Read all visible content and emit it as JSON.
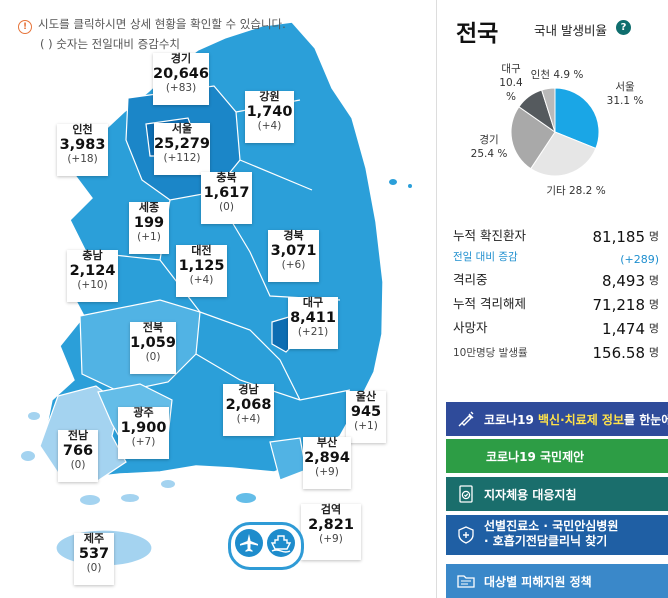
{
  "notice": {
    "line1": "시도를 클릭하시면 상세 현황을 확인할 수 있습니다.",
    "line2": "( ) 숫자는 전일대비 증감수치"
  },
  "regions": [
    {
      "key": "gyeonggi",
      "name": "경기",
      "count": "20,646",
      "diff": "(+83)"
    },
    {
      "key": "gangwon",
      "name": "강원",
      "count": "1,740",
      "diff": "(+4)"
    },
    {
      "key": "incheon",
      "name": "인천",
      "count": "3,983",
      "diff": "(+18)"
    },
    {
      "key": "seoul",
      "name": "서울",
      "count": "25,279",
      "diff": "(+112)"
    },
    {
      "key": "chungbuk",
      "name": "충북",
      "count": "1,617",
      "diff": "(0)"
    },
    {
      "key": "sejong",
      "name": "세종",
      "count": "199",
      "diff": "(+1)"
    },
    {
      "key": "chungnam",
      "name": "충남",
      "count": "2,124",
      "diff": "(+10)"
    },
    {
      "key": "daejeon",
      "name": "대전",
      "count": "1,125",
      "diff": "(+4)"
    },
    {
      "key": "gyeongbuk",
      "name": "경북",
      "count": "3,071",
      "diff": "(+6)"
    },
    {
      "key": "daegu",
      "name": "대구",
      "count": "8,411",
      "diff": "(+21)"
    },
    {
      "key": "jeonbuk",
      "name": "전북",
      "count": "1,059",
      "diff": "(0)"
    },
    {
      "key": "gwangju",
      "name": "광주",
      "count": "1,900",
      "diff": "(+7)"
    },
    {
      "key": "jeonnam",
      "name": "전남",
      "count": "766",
      "diff": "(0)"
    },
    {
      "key": "gyeongnam",
      "name": "경남",
      "count": "2,068",
      "diff": "(+4)"
    },
    {
      "key": "ulsan",
      "name": "울산",
      "count": "945",
      "diff": "(+1)"
    },
    {
      "key": "busan",
      "name": "부산",
      "count": "2,894",
      "diff": "(+9)"
    },
    {
      "key": "jeju",
      "name": "제주",
      "count": "537",
      "diff": "(0)"
    },
    {
      "key": "quarantine",
      "name": "검역",
      "count": "2,821",
      "diff": "(+9)"
    }
  ],
  "transport": {
    "airport_icon": "airplane-icon",
    "port_icon": "ship-icon"
  },
  "side": {
    "title": "전국",
    "ratio_title": "국내 발생비율",
    "help_icon": "?",
    "pie": [
      {
        "label": "서울",
        "pct": "31.1 %",
        "value": 31.1,
        "color": "#1aa6e6"
      },
      {
        "label": "기타",
        "pct": "28.2 %",
        "value": 28.2,
        "color": "#e6e6e6"
      },
      {
        "label": "경기",
        "pct": "25.4 %",
        "value": 25.4,
        "color": "#a9a9a9"
      },
      {
        "label": "대구",
        "pct": "10.4 %",
        "value": 10.4,
        "color": "#555a5e"
      },
      {
        "label": "인천",
        "pct": "4.9 %",
        "value": 4.9,
        "color": "#b9b9b9"
      }
    ],
    "stats": {
      "confirmed_label": "누적 확진환자",
      "confirmed_value": "81,185",
      "unit": "명",
      "diff_label": "전일 대비 증감",
      "diff_value": "(+289)",
      "isolating_label": "격리중",
      "isolating_value": "8,493",
      "released_label": "누적 격리해제",
      "released_value": "71,218",
      "deaths_label": "사망자",
      "deaths_value": "1,474",
      "rate_label": "10만명당 발생률",
      "rate_value": "156.58"
    },
    "banners": {
      "b1_pre": "코로나19 ",
      "b1_hl": "백신·치료제 정보",
      "b1_post": "를 한눈에",
      "b2": "코로나19 국민제안",
      "b3": "지자체용 대응지침",
      "b4_line1": "선별진료소 · 국민안심병원",
      "b4_line2": "· 호흡기전담클리닉 찾기",
      "b5": "대상별 피해지원 정책",
      "colors": {
        "b1": "#2f4b9a",
        "b2": "#2d9d45",
        "b3": "#1a6e6c",
        "b4": "#1f5fa4",
        "b5": "#3a88c9"
      }
    }
  }
}
